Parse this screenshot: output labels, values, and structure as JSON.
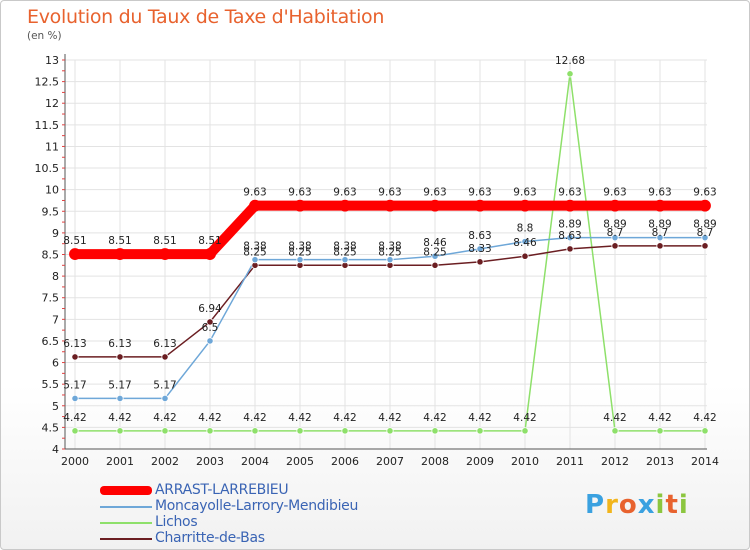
{
  "title": "Evolution du Taux de Taxe d'Habitation",
  "subtitle": "(en %)",
  "brand": {
    "text": "Proxiti",
    "letters": [
      {
        "ch": "P",
        "color": "#3aa1e0"
      },
      {
        "ch": "r",
        "color": "#f2b51c"
      },
      {
        "ch": "o",
        "color": "#e8622e"
      },
      {
        "ch": "x",
        "color": "#3aa1e0"
      },
      {
        "ch": "i",
        "color": "#8cc63f"
      },
      {
        "ch": "t",
        "color": "#e8622e"
      },
      {
        "ch": "i",
        "color": "#8cc63f"
      }
    ]
  },
  "chart_data": {
    "type": "line",
    "x": [
      "2000",
      "2001",
      "2002",
      "2003",
      "2004",
      "2005",
      "2006",
      "2007",
      "2008",
      "2009",
      "2010",
      "2011",
      "2012",
      "2013",
      "2014"
    ],
    "ylim": [
      4,
      13
    ],
    "ytick_step": 0.5,
    "ytick_labels": [
      "4",
      "4.5",
      "5",
      "5.5",
      "6",
      "6.5",
      "7",
      "7.5",
      "8",
      "8.5",
      "9",
      "9.5",
      "10",
      "10.5",
      "11",
      "11.5",
      "12",
      "12.5",
      "13"
    ],
    "grid": true,
    "legend_position": "bottom-left",
    "series": [
      {
        "name": "Lichos",
        "color": "#8ee06a",
        "values": [
          4.42,
          4.42,
          4.42,
          4.42,
          4.42,
          4.42,
          4.42,
          4.42,
          4.42,
          4.42,
          4.42,
          12.68,
          4.42,
          4.42,
          4.42
        ],
        "labels": [
          "4.42",
          "4.42",
          "4.42",
          "4.42",
          "4.42",
          "4.42",
          "4.42",
          "4.42",
          "4.42",
          "4.42",
          "4.42",
          "12.68",
          "4.42",
          "4.42",
          "4.42"
        ]
      },
      {
        "name": "Charritte-de-Bas",
        "color": "#6b1e22",
        "values": [
          6.13,
          6.13,
          6.13,
          6.94,
          8.25,
          8.25,
          8.25,
          8.25,
          8.25,
          8.33,
          8.46,
          8.63,
          8.7,
          8.7,
          8.7
        ],
        "labels": [
          "6.13",
          "6.13",
          "6.13",
          "6.94",
          "8.25",
          "8.25",
          "8.25",
          "8.25",
          "8.25",
          "8.33",
          "8.46",
          "8.63",
          "8.7",
          "8.7",
          "8.7"
        ]
      },
      {
        "name": "Moncayolle-Larrory-Mendibieu",
        "color": "#6ea7d8",
        "values": [
          5.17,
          5.17,
          5.17,
          6.5,
          8.38,
          8.38,
          8.38,
          8.38,
          8.46,
          8.63,
          8.8,
          8.89,
          8.89,
          8.89,
          8.89
        ],
        "labels": [
          "5.17",
          "5.17",
          "5.17",
          "6.5",
          "8.38",
          "8.38",
          "8.38",
          "8.38",
          "8.46",
          "8.63",
          "8.8",
          "8.89",
          "8.89",
          "8.89",
          "8.89"
        ]
      },
      {
        "name": "ARRAST-LARREBIEU",
        "color": "#ff0000",
        "values": [
          8.51,
          8.51,
          8.51,
          8.51,
          9.63,
          9.63,
          9.63,
          9.63,
          9.63,
          9.63,
          9.63,
          9.63,
          9.63,
          9.63,
          9.63
        ],
        "labels": [
          "8.51",
          "8.51",
          "8.51",
          "8.51",
          "9.63",
          "9.63",
          "9.63",
          "9.63",
          "9.63",
          "9.63",
          "9.63",
          "9.63",
          "9.63",
          "9.63",
          "9.63"
        ]
      }
    ]
  },
  "legend": [
    {
      "label": "ARRAST-LARREBIEU",
      "color": "#ff0000",
      "thick": true
    },
    {
      "label": "Moncayolle-Larrory-Mendibieu",
      "color": "#6ea7d8",
      "thick": false
    },
    {
      "label": "Lichos",
      "color": "#8ee06a",
      "thick": false
    },
    {
      "label": "Charritte-de-Bas",
      "color": "#6b1e22",
      "thick": false
    }
  ]
}
